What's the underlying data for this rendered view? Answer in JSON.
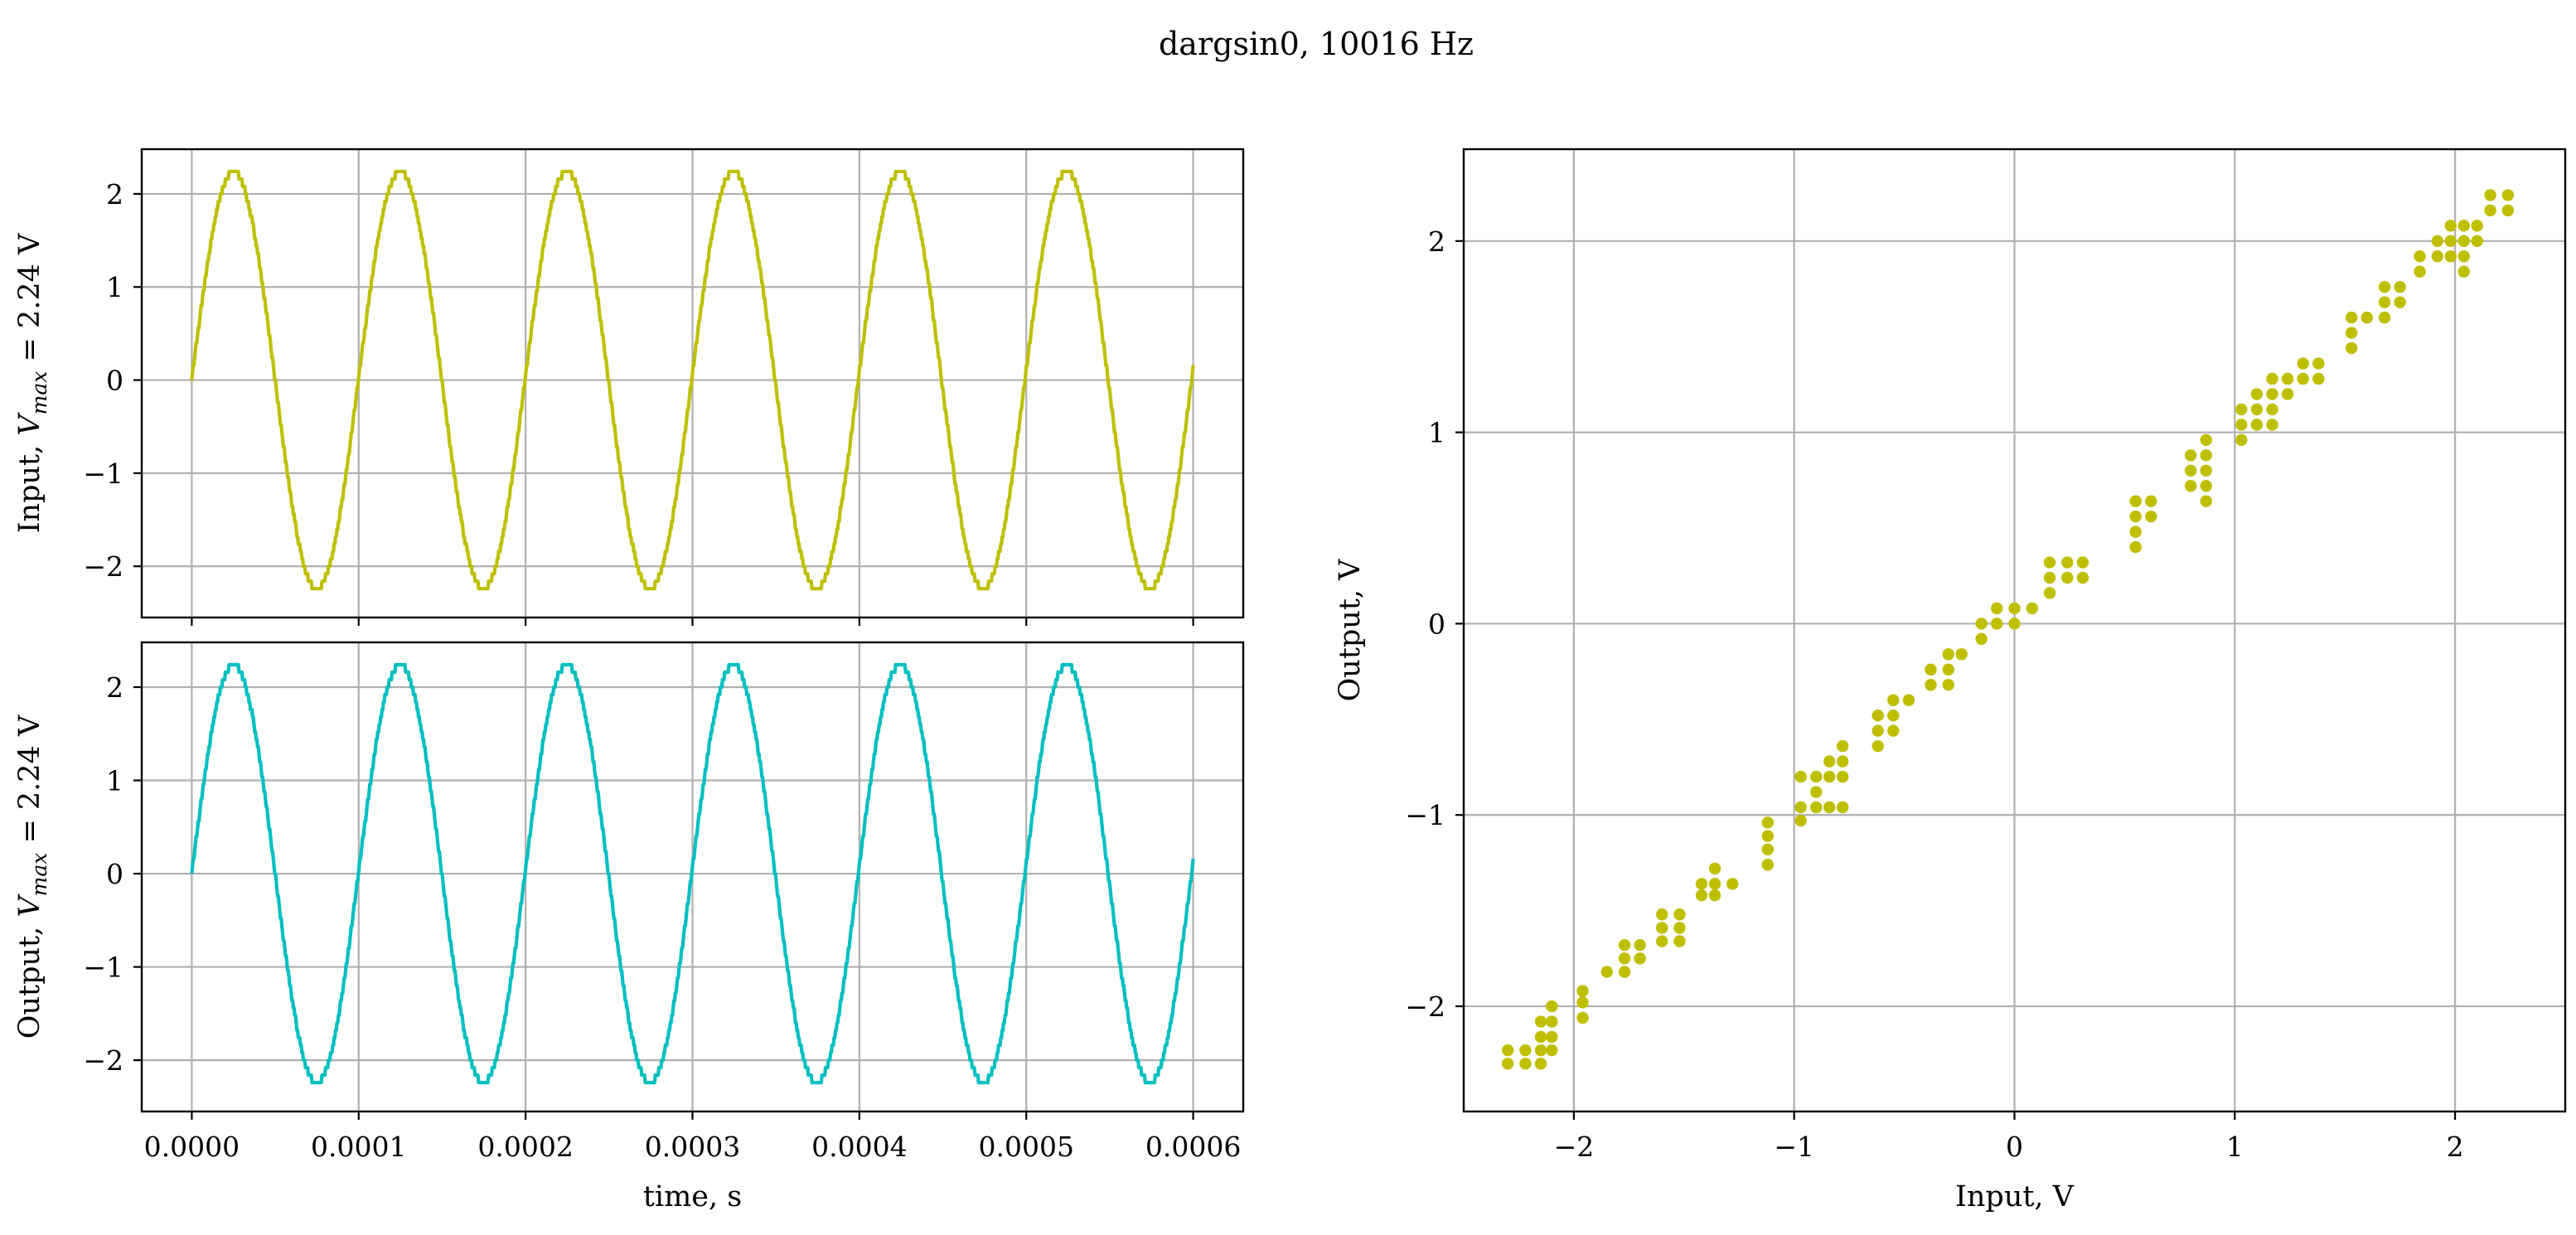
{
  "figure_title": "dargsin0, 10016 Hz",
  "colors": {
    "input": "#bfbf00",
    "output": "#00bfbf",
    "scatter": "#bfbf00",
    "grid": "#b0b0b0"
  },
  "chart_data": [
    {
      "type": "line",
      "id": "input-plot",
      "ylabel": "Input, V_max = 2.24 V",
      "ylabel_parts": {
        "pre": "Input, ",
        "sym": "V",
        "sub": "max",
        "post": " = 2.24 V"
      },
      "xlim": [
        -3e-05,
        0.00063
      ],
      "ylim": [
        -2.55,
        2.48
      ],
      "xticks": [
        0,
        0.0001,
        0.0002,
        0.0003,
        0.0004,
        0.0005,
        0.0006
      ],
      "xtick_labels_visible": false,
      "yticks": [
        -2,
        -1,
        0,
        1,
        2
      ],
      "ytick_labels": [
        "−2",
        "−1",
        "0",
        "1",
        "2"
      ],
      "grid": true,
      "series": [
        {
          "signal": "sine",
          "amplitude": 2.24,
          "frequency_hz": 10016,
          "t_start": 0,
          "t_end": 0.0006,
          "quantization_v": 0.08,
          "color": "#bfbf00"
        }
      ]
    },
    {
      "type": "line",
      "id": "output-plot",
      "ylabel": "Output, V_max = 2.24 V",
      "ylabel_parts": {
        "pre": "Output, ",
        "sym": "V",
        "sub": "max",
        "post": " = 2.24 V"
      },
      "xlabel": "time, s",
      "xlim": [
        -3e-05,
        0.00063
      ],
      "ylim": [
        -2.55,
        2.48
      ],
      "xticks": [
        0,
        0.0001,
        0.0002,
        0.0003,
        0.0004,
        0.0005,
        0.0006
      ],
      "xtick_labels": [
        "0.0000",
        "0.0001",
        "0.0002",
        "0.0003",
        "0.0004",
        "0.0005",
        "0.0006"
      ],
      "yticks": [
        -2,
        -1,
        0,
        1,
        2
      ],
      "ytick_labels": [
        "−2",
        "−1",
        "0",
        "1",
        "2"
      ],
      "grid": true,
      "series": [
        {
          "signal": "sine",
          "amplitude": 2.24,
          "frequency_hz": 10016,
          "t_start": 0,
          "t_end": 0.0006,
          "quantization_v": 0.08,
          "color": "#00bfbf"
        }
      ]
    },
    {
      "type": "scatter",
      "id": "transfer-plot",
      "xlabel": "Input, V",
      "ylabel": "Output, V",
      "xlim": [
        -2.5,
        2.5
      ],
      "ylim": [
        -2.55,
        2.48
      ],
      "xticks": [
        -2,
        -1,
        0,
        1,
        2
      ],
      "xtick_labels": [
        "−2",
        "−1",
        "0",
        "1",
        "2"
      ],
      "yticks": [
        -2,
        -1,
        0,
        1,
        2
      ],
      "ytick_labels": [
        "−2",
        "−1",
        "0",
        "1",
        "2"
      ],
      "grid": true,
      "points": [
        [
          -2.3,
          -2.3
        ],
        [
          -2.3,
          -2.23
        ],
        [
          -2.22,
          -2.3
        ],
        [
          -2.22,
          -2.23
        ],
        [
          -2.15,
          -2.3
        ],
        [
          -2.15,
          -2.23
        ],
        [
          -2.15,
          -2.16
        ],
        [
          -2.15,
          -2.08
        ],
        [
          -2.1,
          -2.23
        ],
        [
          -2.1,
          -2.16
        ],
        [
          -2.1,
          -2.08
        ],
        [
          -2.1,
          -2.0
        ],
        [
          -1.96,
          -2.06
        ],
        [
          -1.96,
          -1.98
        ],
        [
          -1.96,
          -1.92
        ],
        [
          -1.85,
          -1.82
        ],
        [
          -1.77,
          -1.82
        ],
        [
          -1.77,
          -1.75
        ],
        [
          -1.77,
          -1.68
        ],
        [
          -1.7,
          -1.75
        ],
        [
          -1.7,
          -1.68
        ],
        [
          -1.6,
          -1.66
        ],
        [
          -1.6,
          -1.59
        ],
        [
          -1.6,
          -1.52
        ],
        [
          -1.52,
          -1.66
        ],
        [
          -1.52,
          -1.59
        ],
        [
          -1.52,
          -1.52
        ],
        [
          -1.42,
          -1.42
        ],
        [
          -1.42,
          -1.36
        ],
        [
          -1.36,
          -1.42
        ],
        [
          -1.36,
          -1.36
        ],
        [
          -1.36,
          -1.28
        ],
        [
          -1.28,
          -1.36
        ],
        [
          -1.12,
          -1.26
        ],
        [
          -1.12,
          -1.18
        ],
        [
          -1.12,
          -1.11
        ],
        [
          -1.12,
          -1.04
        ],
        [
          -0.97,
          -1.03
        ],
        [
          -0.97,
          -0.96
        ],
        [
          -0.97,
          -0.8
        ],
        [
          -0.9,
          -0.96
        ],
        [
          -0.9,
          -0.88
        ],
        [
          -0.9,
          -0.8
        ],
        [
          -0.84,
          -0.96
        ],
        [
          -0.84,
          -0.8
        ],
        [
          -0.84,
          -0.72
        ],
        [
          -0.78,
          -0.96
        ],
        [
          -0.78,
          -0.8
        ],
        [
          -0.78,
          -0.72
        ],
        [
          -0.78,
          -0.64
        ],
        [
          -0.62,
          -0.64
        ],
        [
          -0.62,
          -0.56
        ],
        [
          -0.62,
          -0.48
        ],
        [
          -0.55,
          -0.56
        ],
        [
          -0.55,
          -0.48
        ],
        [
          -0.55,
          -0.4
        ],
        [
          -0.48,
          -0.4
        ],
        [
          -0.38,
          -0.32
        ],
        [
          -0.38,
          -0.24
        ],
        [
          -0.3,
          -0.32
        ],
        [
          -0.3,
          -0.24
        ],
        [
          -0.3,
          -0.16
        ],
        [
          -0.24,
          -0.16
        ],
        [
          -0.15,
          -0.08
        ],
        [
          -0.15,
          0.0
        ],
        [
          -0.08,
          0.0
        ],
        [
          -0.08,
          0.08
        ],
        [
          0.0,
          0.0
        ],
        [
          0.0,
          0.08
        ],
        [
          0.08,
          0.08
        ],
        [
          0.16,
          0.16
        ],
        [
          0.16,
          0.24
        ],
        [
          0.16,
          0.32
        ],
        [
          0.24,
          0.24
        ],
        [
          0.24,
          0.32
        ],
        [
          0.31,
          0.24
        ],
        [
          0.31,
          0.32
        ],
        [
          0.55,
          0.4
        ],
        [
          0.55,
          0.48
        ],
        [
          0.55,
          0.56
        ],
        [
          0.55,
          0.64
        ],
        [
          0.62,
          0.56
        ],
        [
          0.62,
          0.64
        ],
        [
          0.8,
          0.72
        ],
        [
          0.8,
          0.8
        ],
        [
          0.8,
          0.88
        ],
        [
          0.87,
          0.64
        ],
        [
          0.87,
          0.72
        ],
        [
          0.87,
          0.8
        ],
        [
          0.87,
          0.88
        ],
        [
          0.87,
          0.96
        ],
        [
          1.03,
          0.96
        ],
        [
          1.03,
          1.04
        ],
        [
          1.03,
          1.12
        ],
        [
          1.1,
          1.04
        ],
        [
          1.1,
          1.12
        ],
        [
          1.1,
          1.2
        ],
        [
          1.17,
          1.04
        ],
        [
          1.17,
          1.12
        ],
        [
          1.17,
          1.2
        ],
        [
          1.17,
          1.28
        ],
        [
          1.24,
          1.2
        ],
        [
          1.24,
          1.28
        ],
        [
          1.31,
          1.28
        ],
        [
          1.31,
          1.36
        ],
        [
          1.38,
          1.28
        ],
        [
          1.38,
          1.36
        ],
        [
          1.53,
          1.44
        ],
        [
          1.53,
          1.52
        ],
        [
          1.53,
          1.6
        ],
        [
          1.6,
          1.6
        ],
        [
          1.68,
          1.6
        ],
        [
          1.68,
          1.68
        ],
        [
          1.68,
          1.76
        ],
        [
          1.75,
          1.68
        ],
        [
          1.75,
          1.76
        ],
        [
          1.84,
          1.84
        ],
        [
          1.84,
          1.92
        ],
        [
          1.92,
          1.92
        ],
        [
          1.92,
          2.0
        ],
        [
          1.98,
          1.92
        ],
        [
          1.98,
          2.0
        ],
        [
          1.98,
          2.08
        ],
        [
          2.04,
          1.84
        ],
        [
          2.04,
          1.92
        ],
        [
          2.04,
          2.0
        ],
        [
          2.04,
          2.08
        ],
        [
          2.1,
          2.0
        ],
        [
          2.1,
          2.08
        ],
        [
          2.16,
          2.16
        ],
        [
          2.16,
          2.24
        ],
        [
          2.24,
          2.16
        ],
        [
          2.24,
          2.24
        ]
      ],
      "color": "#bfbf00"
    }
  ]
}
